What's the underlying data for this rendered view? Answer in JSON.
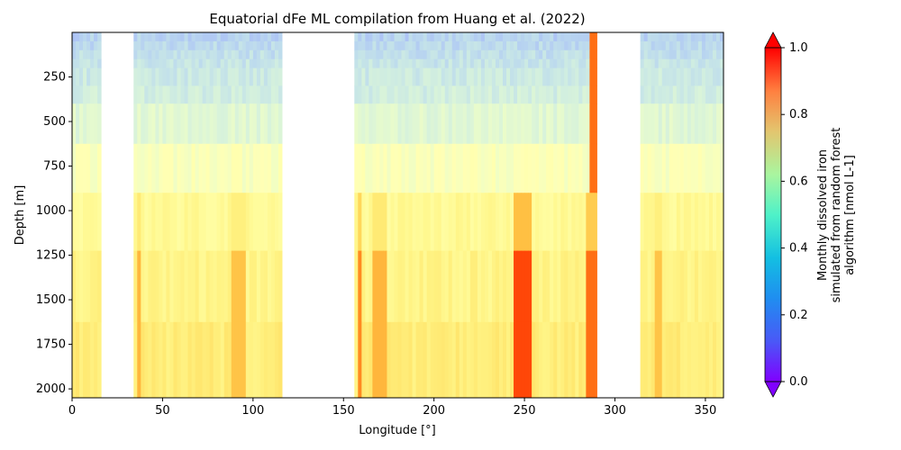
{
  "chart_data": {
    "type": "heatmap",
    "title": "Equatorial dFe ML compilation from Huang et al. (2022)",
    "xlabel": "Longitude [°]",
    "ylabel": "Depth [m]",
    "xlim": [
      0,
      360
    ],
    "ylim": [
      2050,
      0
    ],
    "y_inverted": true,
    "xticks": [
      0,
      50,
      100,
      150,
      200,
      250,
      300,
      350
    ],
    "yticks": [
      250,
      500,
      750,
      1000,
      1250,
      1500,
      1750,
      2000
    ],
    "colormap": "rainbow",
    "colorbar": {
      "label_lines": [
        "Monthly dissolved iron",
        "simulated from random forest",
        "algorithm [nmol L-1]"
      ],
      "vmin": 0.0,
      "vmax": 1.0,
      "ticks": [
        0.0,
        0.2,
        0.4,
        0.6,
        0.8,
        1.0
      ],
      "extend": "both"
    },
    "depth_layers": [
      {
        "top": 0,
        "bottom": 50,
        "value": 0.22
      },
      {
        "top": 50,
        "bottom": 100,
        "value": 0.24
      },
      {
        "top": 100,
        "bottom": 150,
        "value": 0.26
      },
      {
        "top": 150,
        "bottom": 200,
        "value": 0.28
      },
      {
        "top": 200,
        "bottom": 300,
        "value": 0.3
      },
      {
        "top": 300,
        "bottom": 400,
        "value": 0.32
      },
      {
        "top": 400,
        "bottom": 625,
        "value": 0.38
      },
      {
        "top": 625,
        "bottom": 900,
        "value": 0.48
      },
      {
        "top": 900,
        "bottom": 1225,
        "value": 0.6
      },
      {
        "top": 1225,
        "bottom": 1625,
        "value": 0.64
      },
      {
        "top": 1625,
        "bottom": 2050,
        "value": 0.68
      }
    ],
    "missing_longitude_ranges": [
      [
        15,
        33
      ],
      [
        115,
        155
      ],
      [
        289,
        313
      ]
    ],
    "high_value_bands": [
      {
        "lon": [
          35,
          37
        ],
        "value": 0.85
      },
      {
        "lon": [
          88,
          96
        ],
        "value": 0.82
      },
      {
        "lon": [
          157,
          160
        ],
        "value": 0.92
      },
      {
        "lon": [
          165,
          173
        ],
        "value": 0.85
      },
      {
        "lon": [
          244,
          254
        ],
        "value": 0.98
      },
      {
        "lon": [
          284,
          289
        ],
        "value": 0.95
      },
      {
        "lon": [
          322,
          326
        ],
        "value": 0.82
      }
    ]
  }
}
